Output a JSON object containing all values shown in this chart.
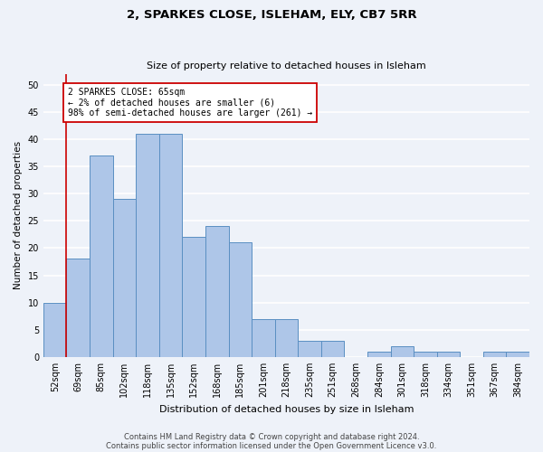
{
  "title": "2, SPARKES CLOSE, ISLEHAM, ELY, CB7 5RR",
  "subtitle": "Size of property relative to detached houses in Isleham",
  "xlabel": "Distribution of detached houses by size in Isleham",
  "ylabel": "Number of detached properties",
  "categories": [
    "52sqm",
    "69sqm",
    "85sqm",
    "102sqm",
    "118sqm",
    "135sqm",
    "152sqm",
    "168sqm",
    "185sqm",
    "201sqm",
    "218sqm",
    "235sqm",
    "251sqm",
    "268sqm",
    "284sqm",
    "301sqm",
    "318sqm",
    "334sqm",
    "351sqm",
    "367sqm",
    "384sqm"
  ],
  "values": [
    10,
    18,
    37,
    29,
    41,
    41,
    22,
    24,
    21,
    7,
    7,
    3,
    3,
    0,
    1,
    2,
    1,
    1,
    0,
    1,
    1
  ],
  "bar_color": "#aec6e8",
  "bar_edge_color": "#5a8fc2",
  "highlight_color": "#cc0000",
  "annotation_text": "2 SPARKES CLOSE: 65sqm\n← 2% of detached houses are smaller (6)\n98% of semi-detached houses are larger (261) →",
  "annotation_box_color": "#ffffff",
  "annotation_box_edge": "#cc0000",
  "ylim": [
    0,
    52
  ],
  "yticks": [
    0,
    5,
    10,
    15,
    20,
    25,
    30,
    35,
    40,
    45,
    50
  ],
  "background_color": "#eef2f9",
  "grid_color": "#ffffff",
  "footer1": "Contains HM Land Registry data © Crown copyright and database right 2024.",
  "footer2": "Contains public sector information licensed under the Open Government Licence v3.0."
}
